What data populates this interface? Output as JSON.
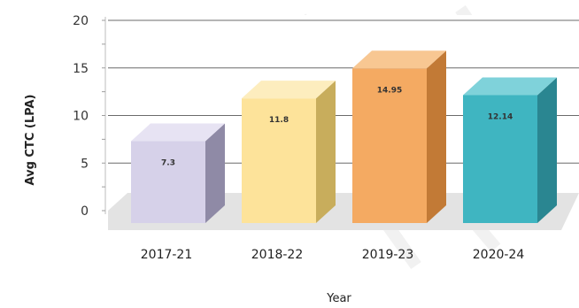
{
  "chart_data": {
    "type": "bar",
    "categories": [
      "2017-21",
      "2018-22",
      "2019-23",
      "2020-24"
    ],
    "values": [
      7.3,
      11.8,
      14.95,
      12.14
    ],
    "data_labels": [
      "7.3",
      "11.8",
      "14.95",
      "12.14"
    ],
    "xlabel": "Year",
    "ylabel": "Avg CTC (LPA)",
    "ylim": [
      0,
      20
    ],
    "yticks": [
      0,
      5,
      10,
      15,
      20
    ],
    "grid": true,
    "style": "3d",
    "colors": {
      "bars": [
        {
          "front": "#d6d1e9",
          "side": "#8f8aa6",
          "top": "#e7e3f3"
        },
        {
          "front": "#fde39a",
          "side": "#c8ad5c",
          "top": "#fdedbe"
        },
        {
          "front": "#f4aa62",
          "side": "#c27a36",
          "top": "#f8c792"
        },
        {
          "front": "#3fb5c1",
          "side": "#2a8691",
          "top": "#7fd2da"
        }
      ],
      "gridline": "#6b6b6b",
      "floor": "#e3e3e3"
    }
  }
}
